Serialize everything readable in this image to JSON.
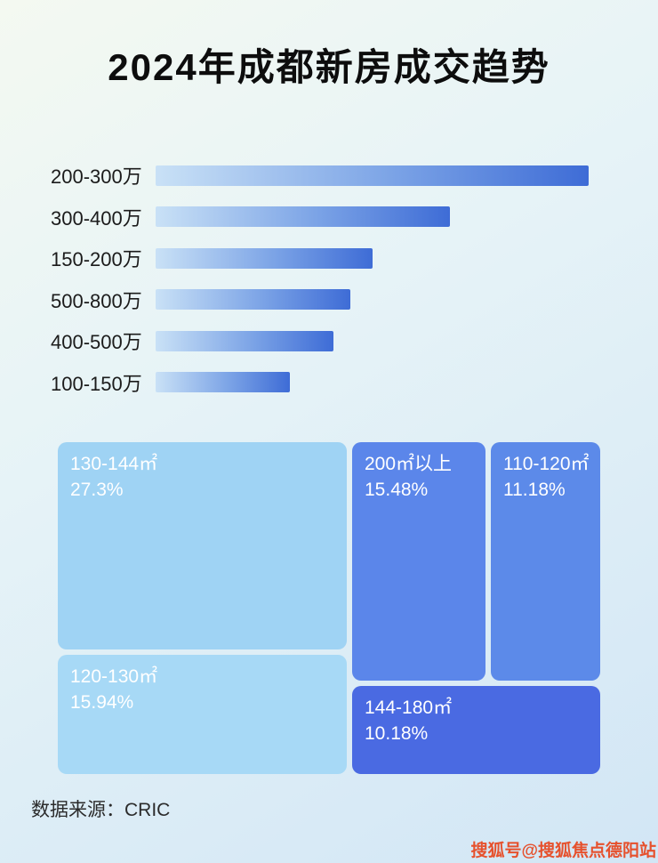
{
  "title": "2024年成都新房成交趋势",
  "bars": {
    "items": [
      {
        "label": "200-300万",
        "value": 100
      },
      {
        "label": "300-400万",
        "value": 68
      },
      {
        "label": "150-200万",
        "value": 50
      },
      {
        "label": "500-800万",
        "value": 45
      },
      {
        "label": "400-500万",
        "value": 41
      },
      {
        "label": "100-150万",
        "value": 31
      }
    ]
  },
  "treemap": {
    "items": [
      {
        "label": "130-144㎡",
        "percent": "27.3%"
      },
      {
        "label": "120-130㎡",
        "percent": "15.94%"
      },
      {
        "label": "200㎡以上",
        "percent": "15.48%"
      },
      {
        "label": "110-120㎡",
        "percent": "11.18%"
      },
      {
        "label": "144-180㎡",
        "percent": "10.18%"
      }
    ]
  },
  "chart_data": [
    {
      "type": "bar",
      "orientation": "horizontal",
      "title": "2024年成都新房成交趋势",
      "categories": [
        "200-300万",
        "300-400万",
        "150-200万",
        "500-800万",
        "400-500万",
        "100-150万"
      ],
      "values": [
        100,
        68,
        50,
        45,
        41,
        31
      ],
      "xlabel": "",
      "ylabel": "",
      "axis_labels_shown": false,
      "grid": false,
      "legend": "none",
      "value_scale": "relative bar length, longest bar = 100"
    },
    {
      "type": "treemap",
      "title": "2024年成都新房成交面积段占比",
      "items": [
        {
          "label": "130-144㎡",
          "value": 27.3
        },
        {
          "label": "120-130㎡",
          "value": 15.94
        },
        {
          "label": "200㎡以上",
          "value": 15.48
        },
        {
          "label": "110-120㎡",
          "value": 11.18
        },
        {
          "label": "144-180㎡",
          "value": 10.18
        }
      ]
    }
  ],
  "footer_source": "数据来源：CRIC",
  "watermark": "搜狐号@搜狐焦点德阳站",
  "colors": {
    "bar_gradient_start": "#c9e1f6",
    "bar_gradient_end": "#3e6cd6",
    "treemap_light_blue": "#9fd3f4",
    "treemap_lighter_blue": "#a7d9f6",
    "treemap_medium_blue": "#5b86ea",
    "treemap_dark_blue": "#4a6ae2",
    "title_color": "#0d0d0d",
    "watermark_color": "#e6512d"
  }
}
